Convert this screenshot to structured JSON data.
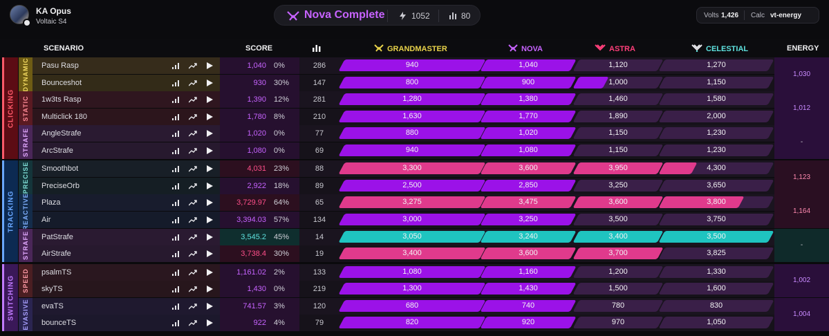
{
  "header": {
    "user_name": "KA Opus",
    "user_sub": "Voltaic S4",
    "rank_title": "Nova Complete",
    "stat_energy": "1052",
    "stat_count": "80",
    "volts_label": "Volts",
    "volts_value": "1,426",
    "calc_label": "Calc",
    "calc_value": "vt-energy"
  },
  "columns": {
    "scenario": "SCENARIO",
    "score": "SCORE",
    "grandmaster": "GRANDMASTER",
    "nova": "NOVA",
    "astra": "ASTRA",
    "celestial": "CELESTIAL",
    "energy": "ENERGY"
  },
  "colors": {
    "grandmaster": "#e8d24a",
    "nova": "#c763ff",
    "astra": "#ff3f7a",
    "celestial": "#5fe3e0",
    "purple_fill": "#9b12e8",
    "pink_fill": "#e03a8c",
    "teal_fill": "#1fc4c0"
  },
  "categories": [
    {
      "label": "CLICKING",
      "color": "#ff5a6a",
      "bg": "#5c0c14"
    },
    {
      "label": "TRACKING",
      "color": "#6aa8ff",
      "bg": "#0c2a52"
    },
    {
      "label": "SWITCHING",
      "color": "#c17bff",
      "bg": "#3a1858"
    }
  ],
  "subcategories": [
    {
      "label": "DYNAMIC",
      "bg": "#6e5c14",
      "color": "#f0d860"
    },
    {
      "label": "STATIC",
      "bg": "#5a1a22",
      "color": "#ff8a96"
    },
    {
      "label": "STRAFE",
      "bg": "#4a2658",
      "color": "#e2a8ff"
    },
    {
      "label": "PRECISE",
      "bg": "#14353a",
      "color": "#7fe0d8"
    },
    {
      "label": "REACTIVE",
      "bg": "#142c4a",
      "color": "#7fb0ff"
    },
    {
      "label": "STRAFE",
      "bg": "#4a2658",
      "color": "#e2a8ff"
    },
    {
      "label": "SPEED",
      "bg": "#4a1e22",
      "color": "#ff9aa6"
    },
    {
      "label": "EVASIVE",
      "bg": "#2a2450",
      "color": "#a9a0ff"
    }
  ],
  "energy": [
    "1,030",
    "1,012",
    "-",
    "1,123",
    "1,164",
    "-",
    "1,002",
    "1,004"
  ],
  "rows": [
    {
      "name": "Pasu Rasp",
      "score": "1,040",
      "pct": "0%",
      "plays": "286",
      "gm": "940",
      "nova": "1,040",
      "astra": "1,120",
      "cel": "1,270",
      "level": 2
    },
    {
      "name": "Bounceshot",
      "score": "930",
      "pct": "30%",
      "plays": "147",
      "gm": "800",
      "nova": "900",
      "astra": "1,000",
      "cel": "1,150",
      "level": 2
    },
    {
      "name": "1w3ts Rasp",
      "score": "1,390",
      "pct": "12%",
      "plays": "281",
      "gm": "1,280",
      "nova": "1,380",
      "astra": "1,460",
      "cel": "1,580",
      "level": 2
    },
    {
      "name": "Multiclick 180",
      "score": "1,780",
      "pct": "8%",
      "plays": "210",
      "gm": "1,630",
      "nova": "1,770",
      "astra": "1,890",
      "cel": "2,000",
      "level": 2
    },
    {
      "name": "AngleStrafe",
      "score": "1,020",
      "pct": "0%",
      "plays": "77",
      "gm": "880",
      "nova": "1,020",
      "astra": "1,150",
      "cel": "1,230",
      "level": 2
    },
    {
      "name": "ArcStrafe",
      "score": "1,080",
      "pct": "0%",
      "plays": "69",
      "gm": "940",
      "nova": "1,080",
      "astra": "1,150",
      "cel": "1,230",
      "level": 2
    },
    {
      "name": "Smoothbot",
      "score": "4,031",
      "pct": "23%",
      "plays": "88",
      "gm": "3,300",
      "nova": "3,600",
      "astra": "3,950",
      "cel": "4,300",
      "level": 3
    },
    {
      "name": "PreciseOrb",
      "score": "2,922",
      "pct": "18%",
      "plays": "89",
      "gm": "2,500",
      "nova": "2,850",
      "astra": "3,250",
      "cel": "3,650",
      "level": 2
    },
    {
      "name": "Plaza",
      "score": "3,729.97",
      "pct": "64%",
      "plays": "65",
      "gm": "3,275",
      "nova": "3,475",
      "astra": "3,600",
      "cel": "3,800",
      "level": 3
    },
    {
      "name": "Air",
      "score": "3,394.03",
      "pct": "57%",
      "plays": "134",
      "gm": "3,000",
      "nova": "3,250",
      "astra": "3,500",
      "cel": "3,750",
      "level": 2
    },
    {
      "name": "PatStrafe",
      "score": "3,545.2",
      "pct": "45%",
      "plays": "14",
      "gm": "3,050",
      "nova": "3,240",
      "astra": "3,400",
      "cel": "3,500",
      "level": 4
    },
    {
      "name": "AirStrafe",
      "score": "3,738.4",
      "pct": "30%",
      "plays": "19",
      "gm": "3,400",
      "nova": "3,600",
      "astra": "3,700",
      "cel": "3,825",
      "level": 3
    },
    {
      "name": "psalmTS",
      "score": "1,161.02",
      "pct": "2%",
      "plays": "133",
      "gm": "1,080",
      "nova": "1,160",
      "astra": "1,200",
      "cel": "1,330",
      "level": 2
    },
    {
      "name": "skyTS",
      "score": "1,430",
      "pct": "0%",
      "plays": "219",
      "gm": "1,300",
      "nova": "1,430",
      "astra": "1,500",
      "cel": "1,600",
      "level": 2
    },
    {
      "name": "evaTS",
      "score": "741.57",
      "pct": "3%",
      "plays": "120",
      "gm": "680",
      "nova": "740",
      "astra": "780",
      "cel": "830",
      "level": 2
    },
    {
      "name": "bounceTS",
      "score": "922",
      "pct": "4%",
      "plays": "79",
      "gm": "820",
      "nova": "920",
      "astra": "970",
      "cel": "1,050",
      "level": 2
    }
  ]
}
